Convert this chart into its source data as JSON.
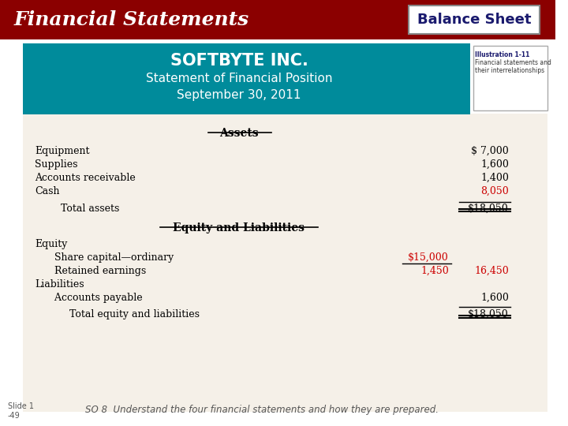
{
  "title_bar_color": "#8B0000",
  "title_text": "Financial Statements",
  "title_text_color": "#FFFFFF",
  "badge_text": "Balance Sheet",
  "badge_text_color": "#1a1a6e",
  "badge_bg_color": "#FFFFFF",
  "teal_header_color": "#008B9B",
  "company_name": "SOFTBYTE INC.",
  "subtitle1": "Statement of Financial Position",
  "subtitle2": "September 30, 2011",
  "header_text_color": "#FFFFFF",
  "illustration_line1": "Illustration 1-11",
  "illustration_line2": "Financial statements and",
  "illustration_line3": "their interrelationships",
  "illustration_text_color": "#1a1a6e",
  "body_bg_color": "#F5F0E8",
  "section1_header": "Assets",
  "section2_header": "Equity and Liabilities",
  "items_left": [
    "Equipment",
    "Supplies",
    "Accounts receivable",
    "Cash",
    "     Total assets"
  ],
  "values_right": [
    "$ 7,000",
    "1,600",
    "1,400",
    "8,050",
    "$18,050"
  ],
  "values_right_color": [
    "#000000",
    "#000000",
    "#000000",
    "#CC0000",
    "#000000"
  ],
  "eq_left_labels": [
    "Equity",
    "   Share capital—ordinary",
    "   Retained earnings",
    "Liabilities",
    "   Accounts payable",
    "      Total equity and liabilities"
  ],
  "eq_mid_values": [
    "",
    "$15,000",
    "1,450",
    "",
    "",
    ""
  ],
  "eq_mid_colors": [
    "#000000",
    "#CC0000",
    "#CC0000",
    "#000000",
    "#000000",
    "#000000"
  ],
  "eq_right_values": [
    "",
    "",
    "16,450",
    "",
    "1,600",
    "$18,050"
  ],
  "eq_right_colors": [
    "#000000",
    "#000000",
    "#CC0000",
    "#000000",
    "#000000",
    "#000000"
  ],
  "footer_slide": "Slide 1\n-49",
  "footer_text": "SO 8  Understand the four financial statements and how they are prepared.",
  "footer_text_color": "#555555",
  "body_text_color": "#000000"
}
